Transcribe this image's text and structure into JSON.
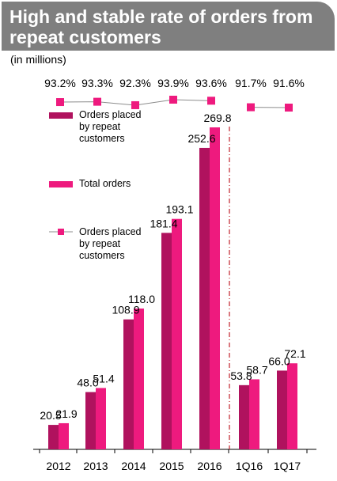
{
  "title": "High and stable rate of orders from repeat customers",
  "units": "(in millions)",
  "colors": {
    "repeat": "#b0125e",
    "total": "#ee1a7e",
    "title_bg": "#7f7f7f",
    "rate_line": "#8c8c8c",
    "divider": "#c0202a"
  },
  "chart_data": {
    "type": "bar",
    "categories": [
      "2012",
      "2013",
      "2014",
      "2015",
      "2016",
      "1Q16",
      "1Q17"
    ],
    "series": [
      {
        "name": "Orders placed by repeat customers",
        "values": [
          20.5,
          48.0,
          108.9,
          181.4,
          252.6,
          53.8,
          66.0
        ]
      },
      {
        "name": "Total orders",
        "values": [
          21.9,
          51.4,
          118.0,
          193.1,
          269.8,
          58.7,
          72.1
        ]
      }
    ],
    "rate_series": {
      "name": "Orders placed by repeat customers",
      "type": "line",
      "values": [
        93.2,
        93.3,
        92.3,
        93.9,
        93.6,
        91.7,
        91.6
      ],
      "labels": [
        "93.2%",
        "93.3%",
        "92.3%",
        "93.9%",
        "93.6%",
        "91.7%",
        "91.6%"
      ]
    },
    "value_labels": {
      "repeat": [
        "20.5",
        "48.0",
        "108.9",
        "181.4",
        "252.6",
        "53.8",
        "66.0"
      ],
      "total": [
        "21.9",
        "51.4",
        "118.0",
        "193.1",
        "269.8",
        "58.7",
        "72.1"
      ]
    },
    "ylim": [
      0,
      269.8
    ],
    "legend": [
      "Orders placed by repeat customers",
      "Total orders",
      "Orders placed by repeat customers"
    ],
    "legend_lines": [
      [
        "Orders placed",
        "by repeat",
        "customers"
      ],
      [
        "Total orders"
      ],
      [
        "Orders placed",
        "by repeat",
        "customers"
      ]
    ],
    "grid": false,
    "legend_position": "top-left"
  }
}
